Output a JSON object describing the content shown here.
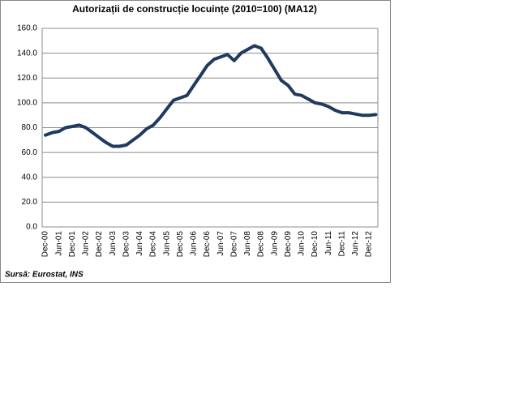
{
  "chart_data": {
    "type": "line",
    "title": "Autorizații de construcție  locuințe (2010=100)  (MA12)",
    "source": "Sursă: Eurostat, INS",
    "categories": [
      "Dec-00",
      null,
      "Jun-01",
      null,
      "Dec-01",
      null,
      "Jun-02",
      null,
      "Dec-02",
      null,
      "Jun-03",
      null,
      "Dec-03",
      null,
      "Jun-04",
      null,
      "Dec-04",
      null,
      "Jun-05",
      null,
      "Dec-05",
      null,
      "Jun-06",
      null,
      "Dec-06",
      null,
      "Jun-07",
      null,
      "Dec-07",
      null,
      "Jun-08",
      null,
      "Dec-08",
      null,
      "Jun-09",
      null,
      "Dec-09",
      null,
      "Jun-10",
      null,
      "Dec-10",
      null,
      "Jun-11",
      null,
      "Dec-11",
      null,
      "Jun-12",
      null,
      "Dec-12",
      null
    ],
    "series": [
      {
        "name": "Autorizații de construcție locuințe",
        "color": "#1f3a5f",
        "values": [
          74,
          76,
          77,
          80,
          81,
          82,
          80,
          76,
          72,
          68,
          65,
          65,
          66,
          70,
          74,
          79,
          82,
          88,
          95,
          102,
          104,
          106,
          114,
          122,
          130,
          135,
          137,
          139,
          134,
          140,
          143,
          146,
          144,
          136,
          127,
          118,
          114,
          107,
          106,
          103,
          100,
          99,
          97,
          94,
          92,
          92,
          91,
          90,
          90,
          90.5
        ]
      }
    ],
    "ylim": [
      0,
      160
    ],
    "yticks": [
      {
        "value": 0,
        "label": "0.0"
      },
      {
        "value": 20,
        "label": "20.0"
      },
      {
        "value": 40,
        "label": "40.0"
      },
      {
        "value": 60,
        "label": "60.0"
      },
      {
        "value": 80,
        "label": "80.0"
      },
      {
        "value": 100,
        "label": "100.0"
      },
      {
        "value": 120,
        "label": "120.0"
      },
      {
        "value": 140,
        "label": "140.0"
      },
      {
        "value": 160,
        "label": "160.0"
      }
    ],
    "grid": true
  }
}
